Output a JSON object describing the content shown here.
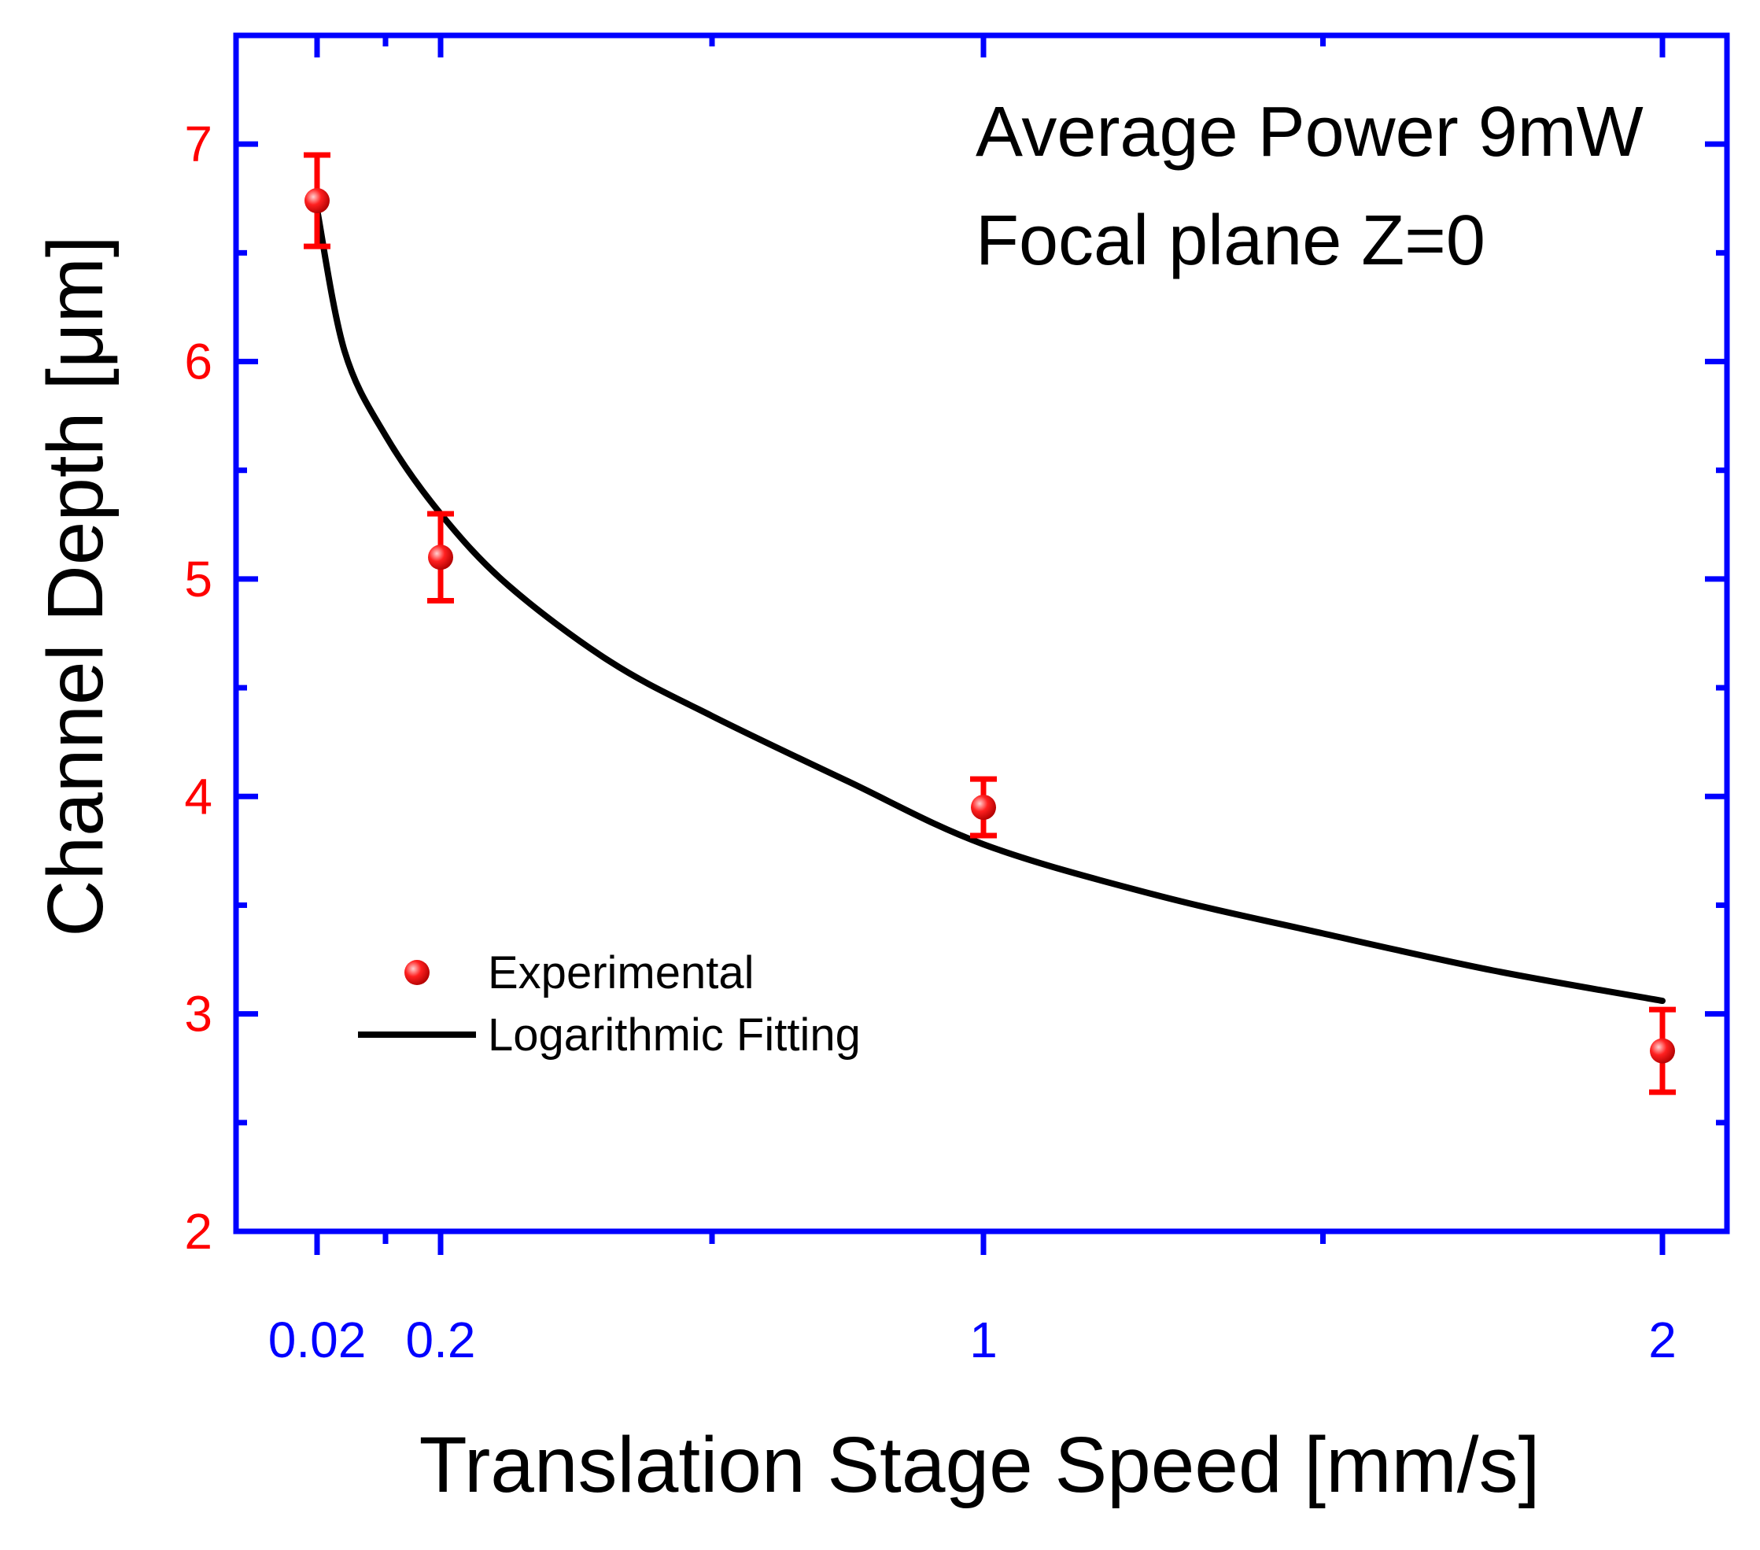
{
  "chart_data": {
    "type": "scatter",
    "title": "",
    "xlabel": "Translation Stage Speed [mm/s]",
    "ylabel": "Channel Depth [μm]",
    "ylim": [
      2,
      7.5
    ],
    "x_ticks": [
      "0.02",
      "0.2",
      "1",
      "2"
    ],
    "y_ticks": [
      "2",
      "3",
      "4",
      "5",
      "6",
      "7"
    ],
    "annotations": [
      "Average Power 9mW",
      "Focal plane Z=0"
    ],
    "legend": {
      "placement": "lower-left",
      "entries": [
        "Experimental",
        "Logarithmic Fitting"
      ]
    },
    "series": [
      {
        "name": "Experimental",
        "kind": "points-with-error",
        "x": [
          0.02,
          0.2,
          1,
          2
        ],
        "y": [
          6.74,
          5.1,
          3.95,
          2.83
        ],
        "yerr": [
          0.21,
          0.2,
          0.13,
          0.19
        ]
      },
      {
        "name": "Logarithmic Fitting",
        "kind": "line",
        "x": [
          0.02,
          0.06,
          0.12,
          0.2,
          0.3,
          0.45,
          0.6,
          0.8,
          1.0,
          1.25,
          1.5,
          1.75,
          2.0
        ],
        "y": [
          6.7,
          6.05,
          5.66,
          5.3,
          4.97,
          4.62,
          4.37,
          4.07,
          3.78,
          3.55,
          3.37,
          3.2,
          3.06
        ]
      }
    ],
    "colors": {
      "axis": "#0000ff",
      "x_tick_labels": "#0000ff",
      "y_tick_labels": "#ff0000",
      "points": "#ff0000",
      "fit_line": "#000000"
    }
  }
}
